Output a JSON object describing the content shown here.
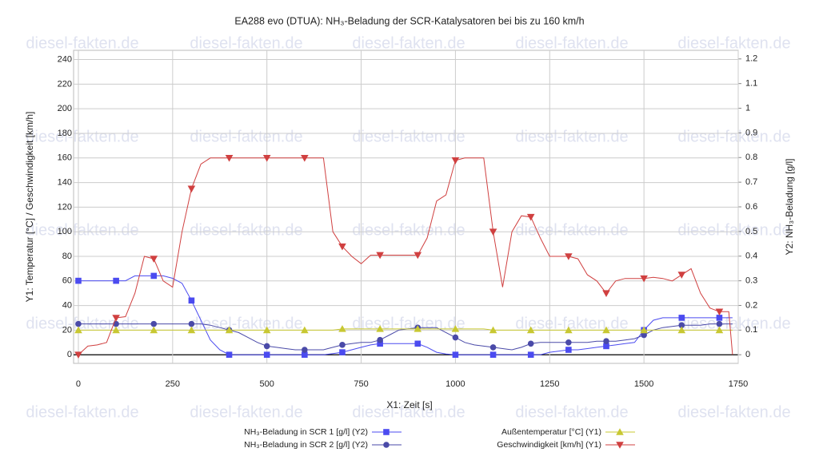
{
  "chart_data": {
    "type": "line",
    "title": "EA288 evo (DTUA): NH₃-Beladung der SCR-Katalysatoren bei bis zu 160 km/h",
    "watermark": "diesel-fakten.de",
    "x_label": "X1: Zeit [s]",
    "y_label": "Y1: Temperatur [°C] / Geschwindigkeit [km/h]",
    "y2_label": "Y2: NH₃-Beladung [g/l]",
    "xlim": [
      -12.7,
      1750
    ],
    "xticks": [
      0,
      250,
      500,
      750,
      1000,
      1250,
      1500,
      1750
    ],
    "ylim": [
      -7,
      247.5
    ],
    "yticks": [
      0,
      20,
      40,
      60,
      80,
      100,
      120,
      140,
      160,
      180,
      200,
      220,
      240
    ],
    "y2lim": [
      -0.035,
      1.235
    ],
    "y2ticks": [
      0,
      0.1,
      0.2,
      0.3,
      0.4,
      0.5,
      0.6,
      0.7,
      0.8,
      0.9,
      1,
      1.1,
      1.2
    ],
    "grid": true,
    "legend": "bottom",
    "x": [
      0,
      25,
      50,
      75,
      100,
      125,
      150,
      175,
      200,
      225,
      250,
      275,
      300,
      325,
      350,
      375,
      400,
      425,
      450,
      475,
      500,
      525,
      550,
      575,
      600,
      625,
      650,
      675,
      700,
      725,
      750,
      775,
      800,
      825,
      850,
      875,
      900,
      925,
      950,
      975,
      1000,
      1025,
      1050,
      1075,
      1100,
      1125,
      1150,
      1175,
      1200,
      1225,
      1250,
      1275,
      1300,
      1325,
      1350,
      1375,
      1400,
      1425,
      1450,
      1475,
      1500,
      1525,
      1550,
      1575,
      1600,
      1625,
      1650,
      1675,
      1700,
      1725,
      1735
    ],
    "series": [
      {
        "name": "NH₃-Beladung in SCR 1 [g/l] (Y2)",
        "color": "#4b4bf0",
        "axis": "y2",
        "marker": "square",
        "values": [
          0.3,
          0.3,
          0.3,
          0.3,
          0.3,
          0.3,
          0.32,
          0.32,
          0.32,
          0.32,
          0.31,
          0.29,
          0.22,
          0.14,
          0.06,
          0.02,
          0,
          0,
          0,
          0,
          0,
          0,
          0,
          0,
          0,
          0,
          0,
          0.005,
          0.01,
          0.02,
          0.03,
          0.04,
          0.045,
          0.045,
          0.045,
          0.045,
          0.045,
          0.03,
          0.01,
          0.003,
          0,
          0,
          0,
          0,
          0,
          0,
          0,
          0,
          0,
          0,
          0.01,
          0.015,
          0.02,
          0.02,
          0.025,
          0.03,
          0.035,
          0.04,
          0.045,
          0.05,
          0.1,
          0.14,
          0.15,
          0.15,
          0.15,
          0.15,
          0.15,
          0.15,
          0.15,
          0.15,
          0.15
        ]
      },
      {
        "name": "NH₃-Beladung in SCR 2 [g/l] (Y2)",
        "color": "#4a4aa8",
        "axis": "y2",
        "marker": "circle",
        "values": [
          0.125,
          0.125,
          0.125,
          0.125,
          0.125,
          0.125,
          0.125,
          0.125,
          0.125,
          0.125,
          0.125,
          0.125,
          0.125,
          0.125,
          0.12,
          0.11,
          0.1,
          0.09,
          0.07,
          0.05,
          0.035,
          0.03,
          0.025,
          0.02,
          0.02,
          0.02,
          0.02,
          0.03,
          0.04,
          0.045,
          0.05,
          0.05,
          0.06,
          0.08,
          0.1,
          0.105,
          0.11,
          0.11,
          0.11,
          0.09,
          0.07,
          0.05,
          0.04,
          0.035,
          0.03,
          0.025,
          0.02,
          0.03,
          0.045,
          0.05,
          0.05,
          0.05,
          0.05,
          0.05,
          0.05,
          0.055,
          0.055,
          0.055,
          0.06,
          0.065,
          0.08,
          0.1,
          0.11,
          0.115,
          0.12,
          0.12,
          0.12,
          0.125,
          0.125,
          0.125,
          0.125
        ]
      },
      {
        "name": "Außentemperatur [°C] (Y1)",
        "color": "#c8c832",
        "axis": "y",
        "marker": "triangle-up",
        "values": [
          20,
          20,
          20,
          20,
          20,
          20,
          20,
          20,
          20,
          20,
          20,
          20,
          20,
          20,
          20,
          20,
          20,
          20,
          20,
          20,
          20,
          20,
          20,
          20,
          20,
          20,
          20,
          20,
          21,
          21,
          21,
          21,
          21,
          21,
          21,
          21,
          21,
          21,
          21,
          21,
          21,
          21,
          21,
          21,
          20,
          20,
          20,
          20,
          20,
          20,
          20,
          20,
          20,
          20,
          20,
          20,
          20,
          20,
          20,
          20,
          20,
          20,
          20,
          20,
          20,
          20,
          20,
          20,
          20,
          20,
          20
        ]
      },
      {
        "name": "Geschwindigkeit [km/h] (Y1)",
        "color": "#d04040",
        "axis": "y",
        "marker": "triangle-down",
        "values": [
          0,
          7,
          8,
          10,
          30,
          31,
          50,
          80,
          78,
          60,
          55,
          100,
          135,
          155,
          160,
          160,
          160,
          160,
          160,
          160,
          160,
          160,
          160,
          160,
          160,
          160,
          160,
          100,
          88,
          80,
          74,
          81,
          81,
          81,
          81,
          81,
          81,
          95,
          125,
          130,
          158,
          160,
          160,
          160,
          100,
          55,
          100,
          113,
          112,
          95,
          80,
          80,
          80,
          78,
          65,
          60,
          50,
          60,
          62,
          62,
          62,
          63,
          62,
          60,
          65,
          70,
          50,
          38,
          35,
          35,
          0
        ]
      }
    ]
  }
}
